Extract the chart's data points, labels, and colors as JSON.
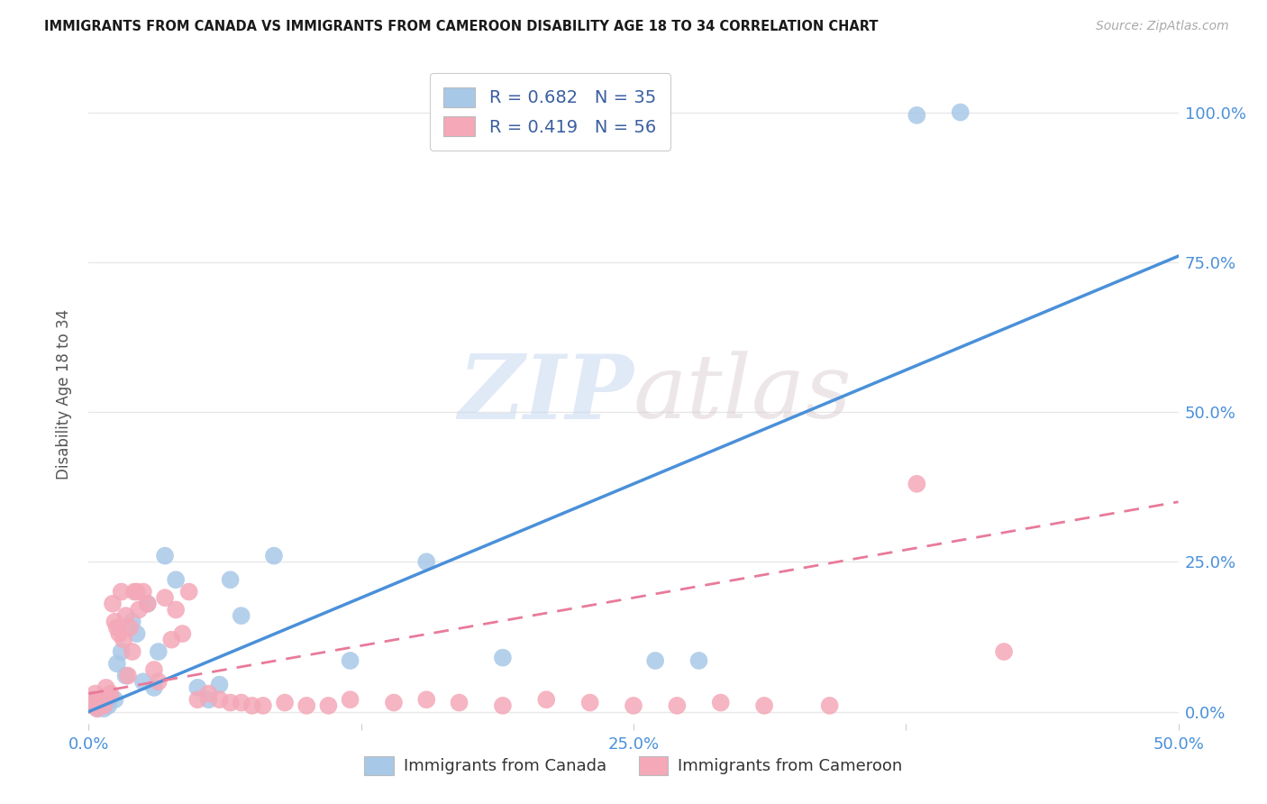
{
  "title": "IMMIGRANTS FROM CANADA VS IMMIGRANTS FROM CAMEROON DISABILITY AGE 18 TO 34 CORRELATION CHART",
  "source": "Source: ZipAtlas.com",
  "xlabel_label": "Immigrants from Canada",
  "xlabel_label2": "Immigrants from Cameroon",
  "ylabel": "Disability Age 18 to 34",
  "xlim": [
    0.0,
    0.5
  ],
  "ylim": [
    -0.02,
    1.08
  ],
  "xtick_labels": [
    "0.0%",
    "",
    "25.0%",
    "",
    "50.0%"
  ],
  "xtick_vals": [
    0.0,
    0.125,
    0.25,
    0.375,
    0.5
  ],
  "ytick_labels": [
    "100.0%",
    "75.0%",
    "50.0%",
    "25.0%",
    "0.0%"
  ],
  "ytick_vals": [
    1.0,
    0.75,
    0.5,
    0.25,
    0.0
  ],
  "canada_color": "#a8c8e8",
  "cameroon_color": "#f4a8b8",
  "canada_line_color": "#4a90d9",
  "cameroon_line_color": "#e87a9a",
  "legend_text_color": "#3a5fa0",
  "R_canada": 0.682,
  "N_canada": 35,
  "R_cameroon": 0.419,
  "N_cameroon": 56,
  "canada_scatter_x": [
    0.001,
    0.002,
    0.003,
    0.004,
    0.005,
    0.006,
    0.007,
    0.008,
    0.009,
    0.01,
    0.012,
    0.013,
    0.015,
    0.017,
    0.02,
    0.022,
    0.025,
    0.027,
    0.03,
    0.032,
    0.035,
    0.04,
    0.05,
    0.055,
    0.06,
    0.065,
    0.07,
    0.085,
    0.12,
    0.155,
    0.19,
    0.26,
    0.28,
    0.38,
    0.4
  ],
  "canada_scatter_y": [
    0.015,
    0.01,
    0.02,
    0.005,
    0.01,
    0.015,
    0.005,
    0.02,
    0.01,
    0.025,
    0.02,
    0.08,
    0.1,
    0.06,
    0.15,
    0.13,
    0.05,
    0.18,
    0.04,
    0.1,
    0.26,
    0.22,
    0.04,
    0.02,
    0.045,
    0.22,
    0.16,
    0.26,
    0.085,
    0.25,
    0.09,
    0.085,
    0.085,
    0.995,
    1.0
  ],
  "cameroon_scatter_x": [
    0.001,
    0.002,
    0.003,
    0.004,
    0.005,
    0.006,
    0.007,
    0.008,
    0.009,
    0.01,
    0.011,
    0.012,
    0.013,
    0.014,
    0.015,
    0.016,
    0.017,
    0.018,
    0.019,
    0.02,
    0.021,
    0.022,
    0.023,
    0.025,
    0.027,
    0.03,
    0.032,
    0.035,
    0.038,
    0.04,
    0.043,
    0.046,
    0.05,
    0.055,
    0.06,
    0.065,
    0.07,
    0.075,
    0.08,
    0.09,
    0.1,
    0.11,
    0.12,
    0.14,
    0.155,
    0.17,
    0.19,
    0.21,
    0.23,
    0.25,
    0.27,
    0.29,
    0.31,
    0.34,
    0.38,
    0.42
  ],
  "cameroon_scatter_y": [
    0.02,
    0.01,
    0.03,
    0.005,
    0.015,
    0.02,
    0.01,
    0.04,
    0.025,
    0.03,
    0.18,
    0.15,
    0.14,
    0.13,
    0.2,
    0.12,
    0.16,
    0.06,
    0.14,
    0.1,
    0.2,
    0.2,
    0.17,
    0.2,
    0.18,
    0.07,
    0.05,
    0.19,
    0.12,
    0.17,
    0.13,
    0.2,
    0.02,
    0.03,
    0.02,
    0.015,
    0.015,
    0.01,
    0.01,
    0.015,
    0.01,
    0.01,
    0.02,
    0.015,
    0.02,
    0.015,
    0.01,
    0.02,
    0.015,
    0.01,
    0.01,
    0.015,
    0.01,
    0.01,
    0.38,
    0.1
  ],
  "canada_line_x0": 0.0,
  "canada_line_y0": 0.0,
  "canada_line_x1": 0.5,
  "canada_line_y1": 0.76,
  "cameroon_line_x0": 0.0,
  "cameroon_line_y0": 0.03,
  "cameroon_line_x1": 0.5,
  "cameroon_line_y1": 0.35,
  "watermark_zip": "ZIP",
  "watermark_atlas": "atlas",
  "background_color": "#ffffff",
  "grid_color": "#e8e8e8"
}
